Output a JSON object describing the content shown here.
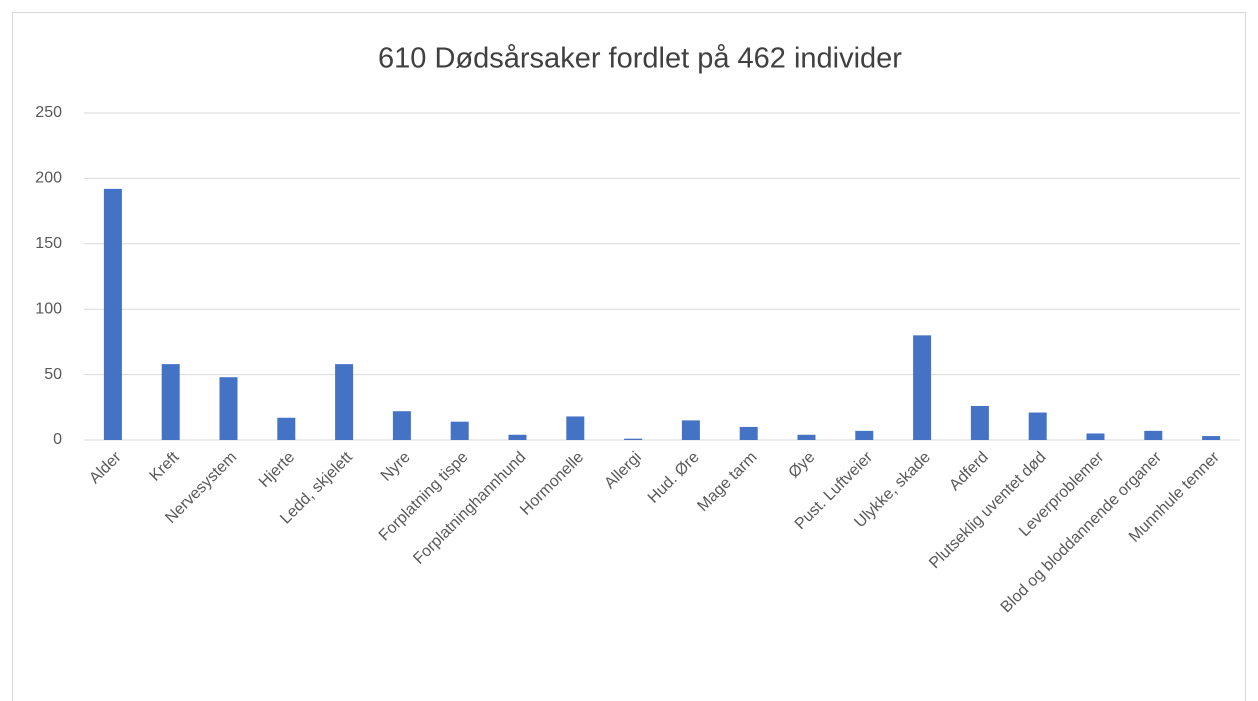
{
  "chart_data": {
    "type": "bar",
    "title": "610 Dødsårsaker fordlet på 462 individer",
    "categories": [
      "Alder",
      "Kreft",
      "Nervesystem",
      "Hjerte",
      "Ledd, skjelett",
      "Nyre",
      "Forplatning tispe",
      "Forplatninghannhund",
      "Hormonelle",
      "Allergi",
      "Hud. Øre",
      "Mage tarm",
      "Øye",
      "Pust. Luftveier",
      "Ulykke, skade",
      "Adferd",
      "Plutseklig uventet død",
      "Leverproblemer",
      "Blod og bloddannende organer",
      "Munnhule tenner"
    ],
    "values": [
      192,
      58,
      48,
      17,
      58,
      22,
      14,
      4,
      18,
      1,
      15,
      10,
      4,
      7,
      80,
      26,
      21,
      5,
      7,
      3
    ],
    "color": "#4472c4",
    "ylim": [
      0,
      250
    ],
    "yticks": [
      0,
      50,
      100,
      150,
      200,
      250
    ],
    "grid": true
  }
}
